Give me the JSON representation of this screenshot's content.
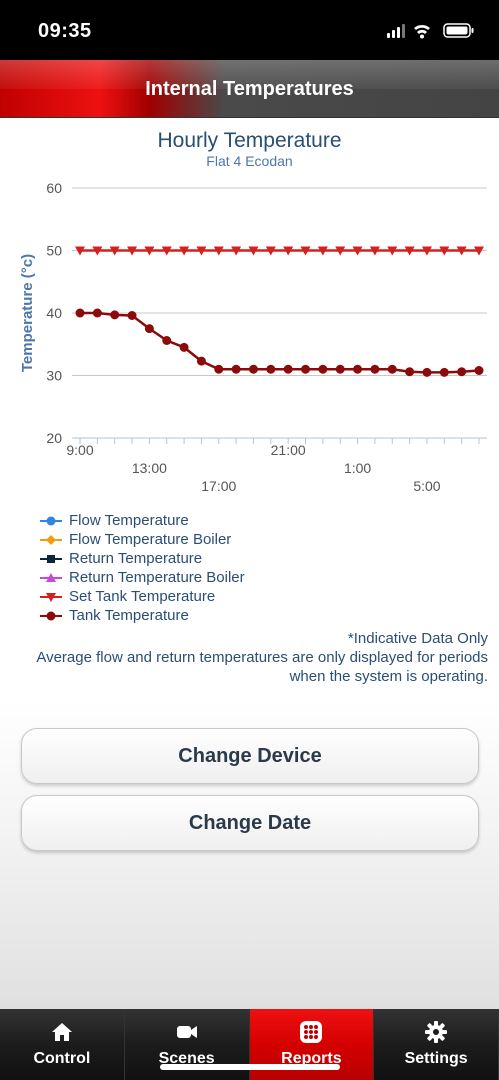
{
  "status_bar": {
    "time": "09:35"
  },
  "header": {
    "title": "Internal Temperatures"
  },
  "chart_data": {
    "type": "line",
    "title": "Hourly Temperature",
    "subtitle": "Flat 4 Ecodan",
    "ylabel": "Temperature (°c)",
    "ylim": [
      20,
      60
    ],
    "yticks": [
      20,
      30,
      40,
      50,
      60
    ],
    "x": [
      "9:00",
      "10:00",
      "11:00",
      "12:00",
      "13:00",
      "14:00",
      "15:00",
      "16:00",
      "17:00",
      "18:00",
      "19:00",
      "20:00",
      "21:00",
      "22:00",
      "23:00",
      "0:00",
      "1:00",
      "2:00",
      "3:00",
      "4:00",
      "5:00",
      "6:00",
      "7:00",
      "8:00"
    ],
    "xtick_labels": [
      {
        "label": "9:00",
        "index": 0,
        "row": 0
      },
      {
        "label": "13:00",
        "index": 4,
        "row": 1
      },
      {
        "label": "17:00",
        "index": 8,
        "row": 2
      },
      {
        "label": "21:00",
        "index": 12,
        "row": 0
      },
      {
        "label": "1:00",
        "index": 16,
        "row": 1
      },
      {
        "label": "5:00",
        "index": 20,
        "row": 2
      }
    ],
    "grid": true,
    "series": [
      {
        "name": "Set Tank Temperature",
        "color": "#d42020",
        "marker": "triangle-down",
        "values": [
          50,
          50,
          50,
          50,
          50,
          50,
          50,
          50,
          50,
          50,
          50,
          50,
          50,
          50,
          50,
          50,
          50,
          50,
          50,
          50,
          50,
          50,
          50,
          50
        ]
      },
      {
        "name": "Tank Temperature",
        "color": "#8b0a0a",
        "marker": "circle",
        "values": [
          40,
          40,
          39.7,
          39.6,
          37.5,
          35.6,
          34.5,
          32.3,
          31,
          31,
          31,
          31,
          31,
          31,
          31,
          31,
          31,
          31,
          31,
          30.6,
          30.5,
          30.5,
          30.6,
          30.8
        ]
      }
    ]
  },
  "legend": [
    {
      "label": "Flow Temperature",
      "color": "#2e86de",
      "marker": "circle"
    },
    {
      "label": "Flow Temperature Boiler",
      "color": "#f39c12",
      "marker": "diamond"
    },
    {
      "label": "Return Temperature",
      "color": "#0d2538",
      "marker": "square"
    },
    {
      "label": "Return Temperature Boiler",
      "color": "#c44bd8",
      "marker": "triangle-up"
    },
    {
      "label": "Set Tank Temperature",
      "color": "#d42020",
      "marker": "triangle-down"
    },
    {
      "label": "Tank Temperature",
      "color": "#8b0a0a",
      "marker": "circle"
    }
  ],
  "notes": {
    "indicative": "*Indicative Data Only",
    "operating": "Average flow and return temperatures are only displayed for periods when the system is operating."
  },
  "buttons": {
    "change_device": "Change Device",
    "change_date": "Change Date"
  },
  "tabs": [
    {
      "label": "Control",
      "icon": "home-icon",
      "active": false
    },
    {
      "label": "Scenes",
      "icon": "video-camera-icon",
      "active": false
    },
    {
      "label": "Reports",
      "icon": "grid-icon",
      "active": true
    },
    {
      "label": "Settings",
      "icon": "gear-icon",
      "active": false
    }
  ]
}
